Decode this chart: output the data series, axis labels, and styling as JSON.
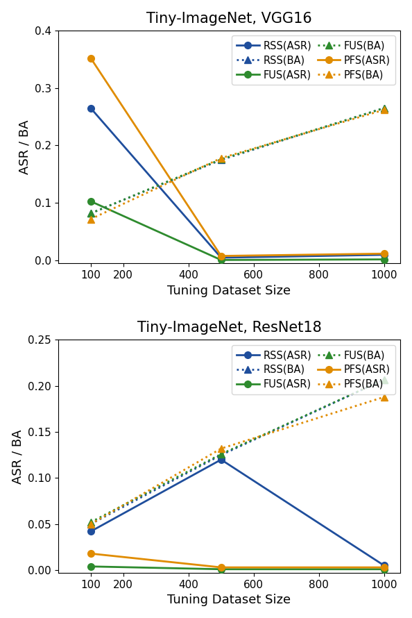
{
  "x": [
    100,
    500,
    1000
  ],
  "plot1": {
    "title": "Tiny-ImageNet, VGG16",
    "ylim": [
      -0.005,
      0.4
    ],
    "yticks": [
      0.0,
      0.1,
      0.2,
      0.3,
      0.4
    ],
    "RSS_ASR": [
      0.265,
      0.005,
      0.01
    ],
    "FUS_ASR": [
      0.103,
      0.001,
      0.002
    ],
    "PFS_ASR": [
      0.352,
      0.008,
      0.012
    ],
    "RSS_BA": [
      0.082,
      0.175,
      0.265
    ],
    "FUS_BA": [
      0.082,
      0.176,
      0.265
    ],
    "PFS_BA": [
      0.072,
      0.178,
      0.262
    ]
  },
  "plot2": {
    "title": "Tiny-ImageNet, ResNet18",
    "ylim": [
      -0.003,
      0.25
    ],
    "yticks": [
      0.0,
      0.05,
      0.1,
      0.15,
      0.2,
      0.25
    ],
    "RSS_ASR": [
      0.042,
      0.12,
      0.005
    ],
    "FUS_ASR": [
      0.004,
      0.001,
      0.001
    ],
    "PFS_ASR": [
      0.018,
      0.003,
      0.003
    ],
    "RSS_BA": [
      0.05,
      0.125,
      0.207
    ],
    "FUS_BA": [
      0.052,
      0.126,
      0.207
    ],
    "PFS_BA": [
      0.05,
      0.132,
      0.188
    ]
  },
  "colors": {
    "RSS": "#1f4e9c",
    "FUS": "#2e8b2e",
    "PFS": "#e08c00"
  },
  "xticks": [
    100,
    200,
    400,
    600,
    800,
    1000
  ],
  "xticklabels": [
    "100",
    "200",
    "400",
    "600",
    "800",
    "1000"
  ],
  "xlabel": "Tuning Dataset Size",
  "ylabel": "ASR / BA"
}
